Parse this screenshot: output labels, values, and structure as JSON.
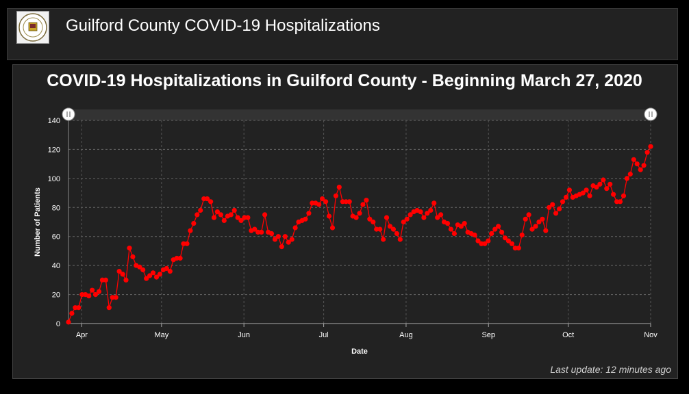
{
  "header": {
    "title": "Guilford County COVID-19 Hospitalizations",
    "logo_icon": "county-seal-icon"
  },
  "footer": {
    "last_update": "Last update: 12 minutes ago"
  },
  "colors": {
    "series": "#ff0000",
    "background": "#222222",
    "text": "#ffffff"
  },
  "chart_data": {
    "type": "line",
    "title": "COVID-19 Hospitalizations in Guilford County - Beginning March 27, 2020",
    "xlabel": "Date",
    "ylabel": "Number of Patients",
    "x_ticks": [
      "Apr",
      "May",
      "Jun",
      "Jul",
      "Aug",
      "Sep",
      "Oct",
      "Nov"
    ],
    "y_ticks": [
      0,
      20,
      40,
      60,
      80,
      100,
      120,
      140
    ],
    "ylim": [
      0,
      140
    ],
    "xlim": [
      "2020-03-27",
      "2020-11-01"
    ],
    "grid": true,
    "series": [
      {
        "values": [
          1,
          7,
          11,
          11,
          20,
          20,
          19,
          23,
          20,
          22,
          30,
          30,
          11,
          18,
          18,
          36,
          34,
          30,
          52,
          46,
          40,
          39,
          37,
          31,
          33,
          35,
          32,
          34,
          37,
          38,
          36,
          44,
          45,
          45,
          55,
          55,
          64,
          69,
          75,
          78,
          86,
          86,
          84,
          73,
          77,
          75,
          71,
          74,
          75,
          78,
          73,
          71,
          73,
          73,
          64,
          65,
          63,
          63,
          75,
          63,
          62,
          58,
          60,
          53,
          60,
          56,
          58,
          66,
          70,
          71,
          72,
          76,
          83,
          83,
          82,
          86,
          84,
          74,
          66,
          88,
          94,
          84,
          84,
          84,
          74,
          73,
          76,
          82,
          85,
          72,
          70,
          65,
          65,
          58,
          73,
          67,
          65,
          62,
          58,
          70,
          72,
          75,
          77,
          78,
          77,
          73,
          76,
          78,
          83,
          73,
          75,
          70,
          69,
          65,
          62,
          68,
          67,
          69,
          63,
          62,
          61,
          57,
          55,
          55,
          57,
          62,
          65,
          67,
          63,
          59,
          57,
          55,
          52,
          52,
          61,
          72,
          75,
          65,
          67,
          70,
          72,
          64,
          80,
          82,
          76,
          79,
          84,
          87,
          92,
          87,
          88,
          89,
          90,
          92,
          88,
          95,
          94,
          96,
          99,
          93,
          96,
          89,
          84,
          84,
          88,
          100,
          103,
          113,
          110,
          106,
          109,
          118,
          122
        ]
      }
    ]
  }
}
